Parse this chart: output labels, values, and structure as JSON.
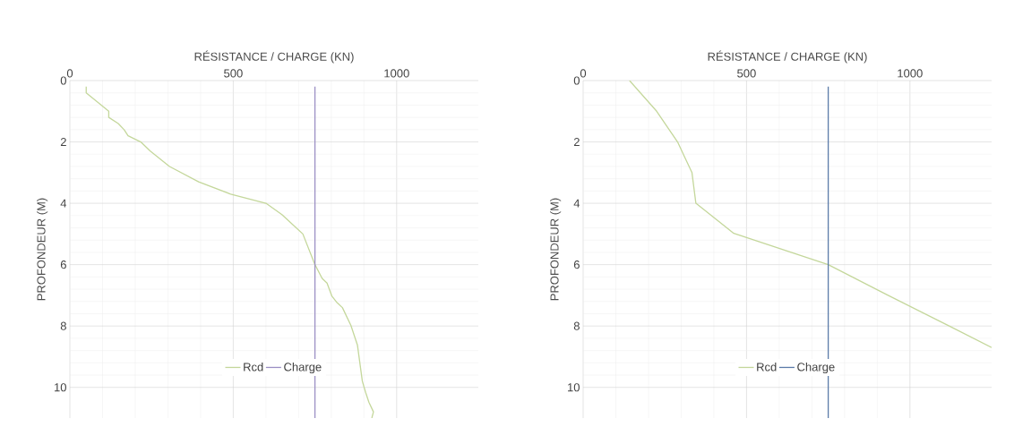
{
  "chart_data": [
    {
      "type": "line",
      "xlabel": "RÉSISTANCE / CHARGE (KN)",
      "ylabel": "PROFONDEUR (M)",
      "xlim": [
        0,
        1250
      ],
      "xticks": [
        0,
        500,
        1000
      ],
      "ylim": [
        11,
        0
      ],
      "yticks": [
        0,
        2,
        4,
        6,
        8,
        10
      ],
      "grid": true,
      "legend": "bottom",
      "series": [
        {
          "name": "Rcd",
          "color": "#c4d79b",
          "x": [
            50,
            50,
            119,
            119,
            148,
            166,
            178,
            217,
            246,
            305,
            394,
            492,
            600,
            649,
            713,
            750,
            772,
            787,
            802,
            816,
            834,
            860,
            880,
            895,
            905,
            915,
            929,
            924
          ],
          "values": [
            0.2,
            0.4,
            1.0,
            1.2,
            1.4,
            1.6,
            1.8,
            2.0,
            2.3,
            2.8,
            3.3,
            3.7,
            4.0,
            4.37,
            5.0,
            6.0,
            6.45,
            6.6,
            7.03,
            7.22,
            7.4,
            7.98,
            8.62,
            9.8,
            10.16,
            10.48,
            10.8,
            11.0
          ]
        },
        {
          "name": "Charge",
          "color": "#9b8fc4",
          "x": [
            750,
            750
          ],
          "values": [
            0.2,
            11
          ]
        }
      ]
    },
    {
      "type": "line",
      "xlabel": "RÉSISTANCE / CHARGE (KN)",
      "ylabel": "PROFONDEUR (M)",
      "xlim": [
        0,
        1250
      ],
      "xticks": [
        0,
        500,
        1000
      ],
      "ylim": [
        11,
        0
      ],
      "yticks": [
        0,
        2,
        4,
        6,
        8,
        10
      ],
      "grid": true,
      "legend": "bottom",
      "series": [
        {
          "name": "Rcd",
          "color": "#c4d79b",
          "x": [
            142,
            225,
            289,
            333,
            345,
            461,
            750,
            933,
            1120,
            1250
          ],
          "values": [
            0,
            1.0,
            2.0,
            3.0,
            4.0,
            4.98,
            6.0,
            7.0,
            8.0,
            8.7
          ]
        },
        {
          "name": "Charge",
          "color": "#5b7ba9",
          "x": [
            750,
            750
          ],
          "values": [
            0.2,
            11
          ]
        }
      ]
    }
  ]
}
